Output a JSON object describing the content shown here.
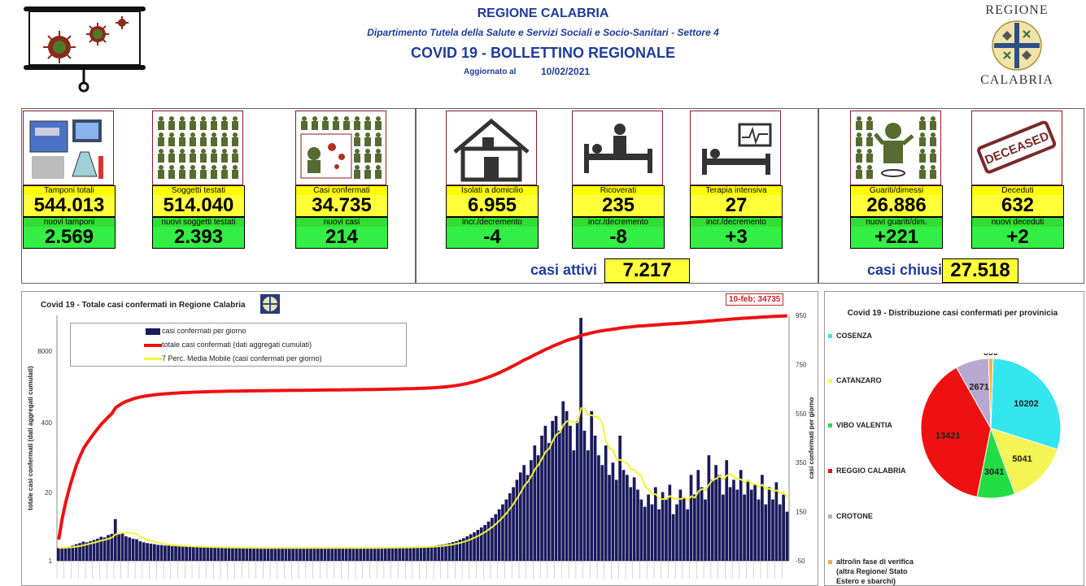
{
  "header": {
    "region": "REGIONE CALABRIA",
    "department": "Dipartimento Tutela della Salute e Servizi Sociali e Socio-Sanitari - Settore 4",
    "bulletin": "COVID 19 - BOLLETTINO REGIONALE",
    "updated_label": "Aggiornato al",
    "updated_date": "10/02/2021",
    "logo_top": "REGIONE",
    "logo_bottom": "CALABRIA"
  },
  "kpis": [
    {
      "label": "Tamponi totali",
      "value": "544.013",
      "sub_label": "nuovi tamponi",
      "sub_value": "2.569",
      "icon": "lab-equipment-icon"
    },
    {
      "label": "Soggetti testati",
      "value": "514.040",
      "sub_label": "nuovi soggetti testati",
      "sub_value": "2.393",
      "icon": "people-grid-icon"
    },
    {
      "label": "Casi confermati",
      "value": "34.735",
      "sub_label": "nuovi casi",
      "sub_value": "214",
      "icon": "infected-person-icon"
    },
    {
      "label": "Isolati a domicilio",
      "value": "6.955",
      "sub_label": "incr./decremento",
      "sub_value": "-4",
      "icon": "house-icon"
    },
    {
      "label": "Ricoverati",
      "value": "235",
      "sub_label": "incr./decremento",
      "sub_value": "-8",
      "icon": "hospital-bed-icon"
    },
    {
      "label": "Terapia intensiva",
      "value": "27",
      "sub_label": "incr./decremento",
      "sub_value": "+3",
      "icon": "icu-bed-icon"
    },
    {
      "label": "Guariti/dimessi",
      "value": "26.886",
      "sub_label": "nuovi guariti/dim.",
      "sub_value": "+221",
      "icon": "recovered-person-icon"
    },
    {
      "label": "Deceduti",
      "value": "632",
      "sub_label": "nuovi deceduti",
      "sub_value": "+2",
      "icon": "deceased-stamp-icon"
    }
  ],
  "deceased_stamp": "DECEASED",
  "summary": {
    "active_label": "casi attivi",
    "active_value": "7.217",
    "closed_label": "casi chiusi",
    "closed_value": "27.518"
  },
  "colors": {
    "title_blue": "#1f3c99",
    "bar_navy": "#1a1a5e",
    "cumulative_red": "#ee1111",
    "moving_avg_yellow": "#ffff33",
    "kpi_yellow": "#ffff3a",
    "kpi_green": "#33ee44"
  },
  "chart_data": [
    {
      "type": "bar",
      "title": "Covid 19 - Totale casi confermati in Regione Calabria",
      "ylabel_left": "totale casi confermati (dati aggregati cumulati)",
      "ylabel_right": "casi confermati per giorno",
      "left_ticks": [
        "1",
        "20",
        "400",
        "8000"
      ],
      "right_ticks": [
        "-50",
        "150",
        "350",
        "550",
        "750",
        "950"
      ],
      "right_ylim": [
        -50,
        950
      ],
      "annotation": "10-feb; 34735",
      "series": [
        {
          "name": "casi confermati per giorno",
          "kind": "bar",
          "color": "#1a1a5e",
          "values": [
            2,
            3,
            5,
            8,
            12,
            18,
            22,
            28,
            25,
            30,
            35,
            40,
            48,
            45,
            55,
            60,
            120,
            58,
            62,
            50,
            45,
            40,
            38,
            30,
            25,
            22,
            20,
            18,
            15,
            14,
            12,
            12,
            10,
            10,
            9,
            8,
            8,
            7,
            7,
            6,
            6,
            5,
            5,
            5,
            4,
            4,
            4,
            4,
            3,
            3,
            3,
            3,
            3,
            3,
            2,
            2,
            2,
            2,
            2,
            2,
            2,
            2,
            2,
            2,
            2,
            2,
            2,
            2,
            2,
            2,
            2,
            2,
            2,
            2,
            2,
            2,
            2,
            2,
            2,
            2,
            2,
            2,
            2,
            2,
            2,
            2,
            2,
            2,
            3,
            3,
            3,
            3,
            3,
            4,
            4,
            4,
            4,
            5,
            5,
            5,
            6,
            6,
            7,
            8,
            9,
            10,
            12,
            14,
            16,
            18,
            22,
            26,
            30,
            36,
            42,
            50,
            58,
            66,
            76,
            86,
            96,
            110,
            125,
            140,
            160,
            180,
            200,
            225,
            250,
            280,
            310,
            340,
            300,
            360,
            420,
            380,
            460,
            500,
            430,
            520,
            540,
            480,
            600,
            560,
            500,
            400,
            520,
            940,
            480,
            400,
            560,
            460,
            380,
            340,
            420,
            300,
            350,
            280,
            460,
            320,
            300,
            250,
            290,
            240,
            200,
            170,
            220,
            180,
            250,
            160,
            230,
            200,
            260,
            140,
            180,
            240,
            210,
            160,
            300,
            220,
            320,
            250,
            200,
            380,
            280,
            340,
            300,
            220,
            360,
            250,
            280,
            240,
            320,
            220,
            280,
            240,
            260,
            200,
            300,
            180,
            250,
            200,
            270,
            180,
            220,
            150
          ]
        },
        {
          "name": "totale casi confermati (dati aggregati cumulati)",
          "kind": "line",
          "color": "#ee1111"
        },
        {
          "name": "7 Perc. Media Mobile (casi confermati per giorno)",
          "kind": "line",
          "color": "#ffff33"
        }
      ]
    },
    {
      "type": "pie",
      "title": "Covid 19 - Distribuzione casi confermati per provinicia",
      "slices": [
        {
          "name": "COSENZA",
          "value": 10202,
          "color": "#33e6ee"
        },
        {
          "name": "CATANZARO",
          "value": 5041,
          "color": "#f4f455"
        },
        {
          "name": "VIBO VALENTIA",
          "value": 3041,
          "color": "#22dd44"
        },
        {
          "name": "REGGIO CALABRIA",
          "value": 13421,
          "color": "#ee1111"
        },
        {
          "name": "CROTONE",
          "value": 2671,
          "color": "#b8a8d0"
        },
        {
          "name": "altro/in fase di verifica (altra Regione/ Stato Estero e sbarchi)",
          "value": 359,
          "color": "#f3b43a"
        }
      ],
      "legend_lines": [
        "altro/in fase di verifica",
        "(altra Regione/ Stato",
        "Estero e sbarchi)"
      ]
    }
  ]
}
